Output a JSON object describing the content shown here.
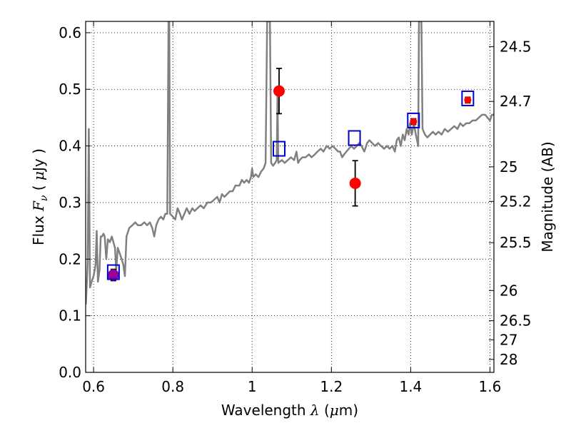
{
  "chart_data": {
    "type": "scatter",
    "xlabel": {
      "prefix": "Wavelength  ",
      "symbol": "λ",
      "suffix": " (",
      "unit_symbol": "μ",
      "unit_rest": "m)"
    },
    "ylabel": {
      "prefix": "Flux  ",
      "symbol": "F",
      "sub": "ν",
      "suffix": "  ( ",
      "unit_symbol": "μ",
      "unit_rest": "Jy )"
    },
    "y2label": "Magnitude (AB)",
    "xlim": [
      0.58,
      1.61
    ],
    "ylim": [
      0.0,
      0.62
    ],
    "x_ticks": [
      0.6,
      0.8,
      1.0,
      1.2,
      1.4,
      1.6
    ],
    "x_tick_labels": [
      "0.6",
      "0.8",
      "1",
      "1.2",
      "1.4",
      "1.6"
    ],
    "y_ticks": [
      0.0,
      0.1,
      0.2,
      0.3,
      0.4,
      0.5,
      0.6
    ],
    "y_tick_labels": [
      "0.0",
      "0.1",
      "0.2",
      "0.3",
      "0.4",
      "0.5",
      "0.6"
    ],
    "y2_ticks": [
      24.5,
      24.7,
      25,
      25.2,
      25.5,
      26,
      26.5,
      27,
      28
    ],
    "y2_tick_labels": [
      "24.5",
      "24.7",
      "25",
      "25.2",
      "25.5",
      "26",
      "26.5",
      "27",
      "28"
    ],
    "y2_zero_point_ab": 23.9,
    "grid": true,
    "colors": {
      "spectrum": "#808080",
      "observed": "#ff0000",
      "model": "#0000cc",
      "matched": "#990099",
      "errorbar": "#000000"
    },
    "spectrum": [
      [
        0.5805,
        0.12
      ],
      [
        0.585,
        0.19
      ],
      [
        0.588,
        0.43
      ],
      [
        0.591,
        0.15
      ],
      [
        0.595,
        0.16
      ],
      [
        0.6,
        0.17
      ],
      [
        0.605,
        0.19
      ],
      [
        0.608,
        0.25
      ],
      [
        0.611,
        0.16
      ],
      [
        0.615,
        0.18
      ],
      [
        0.618,
        0.24
      ],
      [
        0.621,
        0.24
      ],
      [
        0.625,
        0.245
      ],
      [
        0.628,
        0.24
      ],
      [
        0.632,
        0.2
      ],
      [
        0.636,
        0.235
      ],
      [
        0.641,
        0.23
      ],
      [
        0.646,
        0.24
      ],
      [
        0.65,
        0.23
      ],
      [
        0.654,
        0.22
      ],
      [
        0.657,
        0.18
      ],
      [
        0.661,
        0.22
      ],
      [
        0.666,
        0.21
      ],
      [
        0.671,
        0.2
      ],
      [
        0.675,
        0.19
      ],
      [
        0.679,
        0.17
      ],
      [
        0.683,
        0.24
      ],
      [
        0.69,
        0.255
      ],
      [
        0.698,
        0.26
      ],
      [
        0.705,
        0.265
      ],
      [
        0.712,
        0.26
      ],
      [
        0.72,
        0.26
      ],
      [
        0.728,
        0.265
      ],
      [
        0.735,
        0.26
      ],
      [
        0.742,
        0.265
      ],
      [
        0.748,
        0.255
      ],
      [
        0.753,
        0.24
      ],
      [
        0.758,
        0.26
      ],
      [
        0.764,
        0.27
      ],
      [
        0.77,
        0.275
      ],
      [
        0.776,
        0.27
      ],
      [
        0.781,
        0.28
      ],
      [
        0.786,
        0.28
      ],
      [
        0.789,
        0.62
      ],
      [
        0.791,
        0.62
      ],
      [
        0.793,
        0.28
      ],
      [
        0.8,
        0.275
      ],
      [
        0.806,
        0.27
      ],
      [
        0.812,
        0.29
      ],
      [
        0.818,
        0.28
      ],
      [
        0.823,
        0.27
      ],
      [
        0.829,
        0.28
      ],
      [
        0.835,
        0.29
      ],
      [
        0.842,
        0.28
      ],
      [
        0.849,
        0.29
      ],
      [
        0.855,
        0.285
      ],
      [
        0.862,
        0.29
      ],
      [
        0.87,
        0.295
      ],
      [
        0.878,
        0.29
      ],
      [
        0.887,
        0.3
      ],
      [
        0.896,
        0.3
      ],
      [
        0.904,
        0.305
      ],
      [
        0.912,
        0.31
      ],
      [
        0.918,
        0.3
      ],
      [
        0.924,
        0.315
      ],
      [
        0.93,
        0.31
      ],
      [
        0.937,
        0.315
      ],
      [
        0.944,
        0.32
      ],
      [
        0.951,
        0.32
      ],
      [
        0.958,
        0.33
      ],
      [
        0.963,
        0.33
      ],
      [
        0.968,
        0.33
      ],
      [
        0.974,
        0.34
      ],
      [
        0.98,
        0.335
      ],
      [
        0.986,
        0.34
      ],
      [
        0.992,
        0.335
      ],
      [
        0.997,
        0.345
      ],
      [
        1.0,
        0.36
      ],
      [
        1.003,
        0.345
      ],
      [
        1.009,
        0.35
      ],
      [
        1.016,
        0.345
      ],
      [
        1.023,
        0.355
      ],
      [
        1.029,
        0.36
      ],
      [
        1.034,
        0.37
      ],
      [
        1.038,
        0.62
      ],
      [
        1.045,
        0.62
      ],
      [
        1.048,
        0.37
      ],
      [
        1.053,
        0.365
      ],
      [
        1.058,
        0.37
      ],
      [
        1.062,
        0.375
      ],
      [
        1.064,
        0.49
      ],
      [
        1.066,
        0.37
      ],
      [
        1.075,
        0.375
      ],
      [
        1.082,
        0.37
      ],
      [
        1.09,
        0.375
      ],
      [
        1.098,
        0.38
      ],
      [
        1.106,
        0.375
      ],
      [
        1.112,
        0.39
      ],
      [
        1.116,
        0.37
      ],
      [
        1.12,
        0.375
      ],
      [
        1.127,
        0.38
      ],
      [
        1.135,
        0.38
      ],
      [
        1.143,
        0.385
      ],
      [
        1.15,
        0.38
      ],
      [
        1.158,
        0.385
      ],
      [
        1.165,
        0.39
      ],
      [
        1.173,
        0.395
      ],
      [
        1.18,
        0.39
      ],
      [
        1.188,
        0.4
      ],
      [
        1.196,
        0.395
      ],
      [
        1.203,
        0.4
      ],
      [
        1.21,
        0.395
      ],
      [
        1.217,
        0.39
      ],
      [
        1.222,
        0.39
      ],
      [
        1.227,
        0.38
      ],
      [
        1.232,
        0.385
      ],
      [
        1.238,
        0.39
      ],
      [
        1.244,
        0.395
      ],
      [
        1.25,
        0.4
      ],
      [
        1.257,
        0.395
      ],
      [
        1.264,
        0.4
      ],
      [
        1.27,
        0.405
      ],
      [
        1.276,
        0.4
      ],
      [
        1.283,
        0.39
      ],
      [
        1.29,
        0.405
      ],
      [
        1.296,
        0.41
      ],
      [
        1.303,
        0.405
      ],
      [
        1.31,
        0.4
      ],
      [
        1.318,
        0.405
      ],
      [
        1.325,
        0.4
      ],
      [
        1.333,
        0.395
      ],
      [
        1.34,
        0.4
      ],
      [
        1.347,
        0.395
      ],
      [
        1.354,
        0.4
      ],
      [
        1.36,
        0.39
      ],
      [
        1.365,
        0.41
      ],
      [
        1.37,
        0.415
      ],
      [
        1.375,
        0.4
      ],
      [
        1.38,
        0.42
      ],
      [
        1.385,
        0.41
      ],
      [
        1.39,
        0.43
      ],
      [
        1.395,
        0.42
      ],
      [
        1.398,
        0.44
      ],
      [
        1.403,
        0.42
      ],
      [
        1.408,
        0.44
      ],
      [
        1.413,
        0.42
      ],
      [
        1.416,
        0.41
      ],
      [
        1.419,
        0.4
      ],
      [
        1.421,
        0.62
      ],
      [
        1.427,
        0.62
      ],
      [
        1.43,
        0.43
      ],
      [
        1.436,
        0.42
      ],
      [
        1.442,
        0.415
      ],
      [
        1.449,
        0.42
      ],
      [
        1.456,
        0.425
      ],
      [
        1.463,
        0.42
      ],
      [
        1.47,
        0.425
      ],
      [
        1.478,
        0.42
      ],
      [
        1.486,
        0.43
      ],
      [
        1.494,
        0.425
      ],
      [
        1.502,
        0.43
      ],
      [
        1.51,
        0.435
      ],
      [
        1.518,
        0.43
      ],
      [
        1.525,
        0.44
      ],
      [
        1.532,
        0.435
      ],
      [
        1.54,
        0.44
      ],
      [
        1.548,
        0.44
      ],
      [
        1.556,
        0.445
      ],
      [
        1.564,
        0.445
      ],
      [
        1.572,
        0.45
      ],
      [
        1.58,
        0.455
      ],
      [
        1.588,
        0.455
      ],
      [
        1.594,
        0.45
      ],
      [
        1.6,
        0.445
      ],
      [
        1.605,
        0.455
      ],
      [
        1.61,
        0.455
      ]
    ],
    "observed": [
      {
        "x": 0.65,
        "y": 0.172,
        "err": 0.01
      },
      {
        "x": 1.068,
        "y": 0.497,
        "err": 0.04
      },
      {
        "x": 1.26,
        "y": 0.334,
        "err": 0.04
      },
      {
        "x": 1.407,
        "y": 0.443,
        "err": 0.005
      },
      {
        "x": 1.544,
        "y": 0.481,
        "err": 0.005
      }
    ],
    "model": [
      {
        "x": 0.65,
        "y": 0.177
      },
      {
        "x": 1.068,
        "y": 0.395
      },
      {
        "x": 1.258,
        "y": 0.414
      },
      {
        "x": 1.407,
        "y": 0.445
      },
      {
        "x": 1.544,
        "y": 0.484
      }
    ]
  }
}
